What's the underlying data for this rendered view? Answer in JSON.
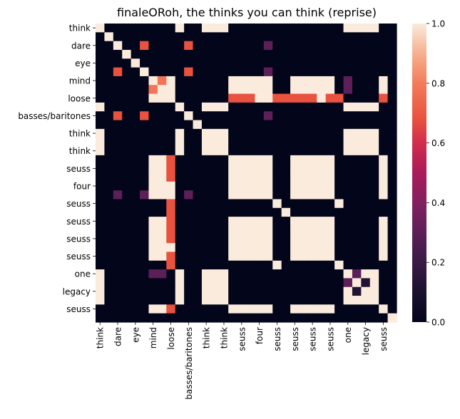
{
  "chart_data": {
    "type": "heatmap",
    "title": "finaleORoh, the thinks you can think (reprise)",
    "n": 34,
    "x_tick_labels": [
      "think",
      "dare",
      "eye",
      "mind",
      "loose",
      "basses/baritones",
      "think",
      "think",
      "seuss",
      "four",
      "seuss",
      "seuss",
      "seuss",
      "seuss",
      "one",
      "legacy",
      "seuss"
    ],
    "y_tick_labels": [
      "think",
      "dare",
      "eye",
      "mind",
      "loose",
      "basses/baritones",
      "think",
      "think",
      "seuss",
      "four",
      "seuss",
      "seuss",
      "seuss",
      "seuss",
      "one",
      "legacy",
      "seuss"
    ],
    "colorbar": {
      "min": 0.0,
      "max": 1.0,
      "ticks": [
        "0.0",
        "0.2",
        "0.4",
        "0.6",
        "0.8",
        "1.0"
      ],
      "colormap": "rocket"
    },
    "value_groups": {
      "A": [
        0,
        9,
        12,
        13,
        14,
        28,
        29,
        30,
        31
      ],
      "B": [
        6,
        7,
        8,
        15,
        16,
        17,
        18,
        19,
        22,
        23,
        24,
        25,
        26,
        32
      ],
      "C": [
        20,
        27
      ]
    },
    "cells": [
      {
        "r": 1,
        "c": 1,
        "v": 1.0
      },
      {
        "r": 2,
        "c": 2,
        "v": 1.0
      },
      {
        "r": 3,
        "c": 3,
        "v": 1.0
      },
      {
        "r": 4,
        "c": 4,
        "v": 1.0
      },
      {
        "r": 5,
        "c": 5,
        "v": 1.0
      },
      {
        "r": 10,
        "c": 10,
        "v": 1.0
      },
      {
        "r": 11,
        "c": 11,
        "v": 1.0
      },
      {
        "r": 21,
        "c": 21,
        "v": 1.0
      },
      {
        "r": 2,
        "c": 5,
        "v": 0.68
      },
      {
        "r": 5,
        "c": 2,
        "v": 0.68
      },
      {
        "r": 2,
        "c": 10,
        "v": 0.68
      },
      {
        "r": 10,
        "c": 2,
        "v": 0.68
      },
      {
        "r": 5,
        "c": 10,
        "v": 0.68
      },
      {
        "r": 10,
        "c": 5,
        "v": 0.68
      },
      {
        "r": 2,
        "c": 19,
        "v": 0.3
      },
      {
        "r": 19,
        "c": 2,
        "v": 0.3
      },
      {
        "r": 5,
        "c": 19,
        "v": 0.3
      },
      {
        "r": 19,
        "c": 5,
        "v": 0.3
      },
      {
        "r": 10,
        "c": 19,
        "v": 0.3
      },
      {
        "r": 19,
        "c": 10,
        "v": 0.3
      },
      {
        "r": 6,
        "c": 6,
        "v": 1.0
      },
      {
        "r": 6,
        "c": 7,
        "v": 0.78
      },
      {
        "r": 7,
        "c": 6,
        "v": 0.78
      },
      {
        "r": 7,
        "c": 7,
        "v": 1.0
      },
      {
        "r": 6,
        "c": 28,
        "v": 0.3
      },
      {
        "r": 7,
        "c": 28,
        "v": 0.3
      },
      {
        "r": 28,
        "c": 6,
        "v": 0.3
      },
      {
        "r": 28,
        "c": 7,
        "v": 0.3
      },
      {
        "r": 28,
        "c": 28,
        "v": 1.0
      },
      {
        "r": 28,
        "c": 29,
        "v": 0.3
      },
      {
        "r": 29,
        "c": 28,
        "v": 0.3
      },
      {
        "r": 29,
        "c": 29,
        "v": 1.0
      },
      {
        "r": 29,
        "c": 30,
        "v": 0.12
      },
      {
        "r": 30,
        "c": 29,
        "v": 0.12
      },
      {
        "r": 30,
        "c": 30,
        "v": 1.0
      },
      {
        "r": 31,
        "c": 31,
        "v": 1.0
      },
      {
        "r": 32,
        "c": 32,
        "v": 1.0
      },
      {
        "r": 33,
        "c": 33,
        "v": 1.0
      }
    ],
    "loose_row": {
      "index": 8,
      "values": [
        {
          "c": 8,
          "v": 1.0
        },
        {
          "c": 15,
          "v": 0.68
        },
        {
          "c": 16,
          "v": 0.68
        },
        {
          "c": 17,
          "v": 0.68
        },
        {
          "c": 20,
          "v": 0.68
        },
        {
          "c": 21,
          "v": 0.68
        },
        {
          "c": 22,
          "v": 0.68
        },
        {
          "c": 23,
          "v": 0.68
        },
        {
          "c": 24,
          "v": 0.68
        },
        {
          "c": 26,
          "v": 0.68
        },
        {
          "c": 27,
          "v": 0.68
        },
        {
          "c": 32,
          "v": 0.68
        }
      ]
    }
  }
}
